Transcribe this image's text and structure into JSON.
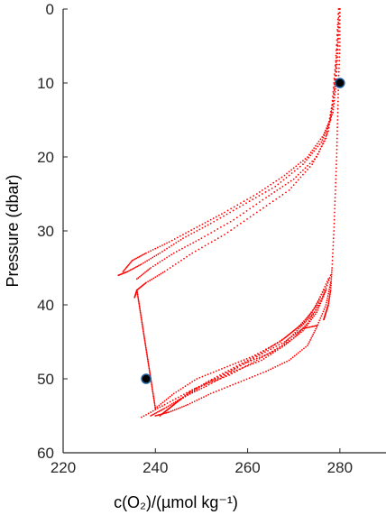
{
  "chart_data": {
    "type": "scatter",
    "title": "",
    "xlabel": "c(O₂)/(µmol kg⁻¹)",
    "ylabel": "Pressure (dbar)",
    "xlim": [
      220,
      290
    ],
    "ylim": [
      60,
      0
    ],
    "y_reversed": true,
    "x_ticks": [
      220,
      240,
      260,
      280
    ],
    "y_ticks": [
      0,
      10,
      20,
      30,
      40,
      50,
      60
    ],
    "grid": false,
    "legend": "none",
    "series": [
      {
        "color": "#ff0000",
        "marker": "dot",
        "profiles": [
          {
            "x": [
              280,
              279.6,
              279.2,
              278.5,
              276.5,
              273,
              268,
              262,
              255,
              249,
              243,
              238,
              235,
              233
            ],
            "y": [
              0,
              5,
              10,
              14,
              17,
              20,
              22.5,
              25,
              27.5,
              29.5,
              31.5,
              33,
              34,
              35.5
            ]
          },
          {
            "x": [
              280,
              279.5,
              279,
              278,
              276,
              272,
              266,
              259,
              252,
              246,
              241,
              237,
              234,
              232
            ],
            "y": [
              0,
              5,
              10,
              15,
              18,
              21,
              24,
              26.5,
              29,
              31,
              33,
              34.5,
              35.5,
              36
            ]
          },
          {
            "x": [
              279.8,
              279.3,
              278.6,
              277.5,
              275,
              270,
              264,
              257,
              250,
              244,
              239,
              236
            ],
            "y": [
              0,
              6,
              12,
              16.5,
              20,
              23,
              25.5,
              28.5,
              31,
              33,
              35,
              36.5
            ]
          },
          {
            "x": [
              279.7,
              279.1,
              278.3,
              277,
              274,
              269,
              262,
              255,
              248,
              242,
              238,
              236,
              235.5
            ],
            "y": [
              0,
              7,
              13,
              17.5,
              21,
              24.5,
              27.5,
              30.5,
              33,
              35.5,
              37,
              38,
              39
            ]
          },
          {
            "x": [
              280,
              280,
              279.7,
              279.5,
              279.3,
              279,
              278.7,
              278.3,
              278,
              277.5,
              277,
              276.5
            ],
            "y": [
              0,
              5,
              10,
              15,
              20,
              25,
              30,
              35,
              38,
              40,
              41,
              42
            ]
          },
          {
            "x": [
              236,
              236.5,
              237,
              237.5,
              238,
              238.5,
              239,
              239.5,
              240
            ],
            "y": [
              38,
              40,
              42,
              44,
              46,
              48,
              50,
              52,
              54
            ]
          },
          {
            "x": [
              240,
              243,
              247,
              252,
              258,
              264,
              269,
              273,
              275,
              277,
              278
            ],
            "y": [
              55,
              54.5,
              53.5,
              52,
              50.5,
              49,
              47.5,
              45.5,
              43,
              40,
              37
            ]
          },
          {
            "x": [
              239,
              242,
              246,
              251,
              257,
              263,
              268,
              272,
              275,
              277
            ],
            "y": [
              55,
              54,
              52.5,
              51,
              49,
              47.5,
              45.5,
              43.5,
              41,
              38
            ]
          },
          {
            "x": [
              241,
              244,
              248,
              253,
              259,
              265,
              270,
              273,
              276,
              278
            ],
            "y": [
              55,
              53.5,
              51.5,
              50,
              48,
              46.5,
              44.5,
              42.5,
              39.5,
              36
            ]
          },
          {
            "x": [
              240,
              244,
              249,
              255,
              261,
              267,
              271,
              274,
              276.5
            ],
            "y": [
              54,
              52,
              50,
              48.5,
              47,
              45,
              43,
              41,
              38
            ]
          },
          {
            "x": [
              242,
              246,
              251,
              257,
              263,
              268,
              272,
              275,
              277.5
            ],
            "y": [
              54.5,
              52.5,
              50.5,
              48.5,
              46.5,
              44.5,
              42.5,
              40,
              36.5
            ]
          },
          {
            "x": [
              241,
              245,
              250,
              256,
              262,
              267.5,
              271.5,
              274.5,
              277
            ],
            "y": [
              55,
              53,
              51,
              49.5,
              47.5,
              45.5,
              43,
              41,
              38
            ]
          },
          {
            "x": [
              237,
              242,
              248,
              255,
              262,
              268,
              272,
              275
            ],
            "y": [
              55.2,
              53.5,
              51.5,
              49.5,
              47,
              45,
              43.2,
              42.8
            ]
          }
        ]
      },
      {
        "color": "#000000",
        "marker": "filled-circle",
        "x": [
          280,
          238
        ],
        "y": [
          10,
          50
        ]
      }
    ]
  }
}
